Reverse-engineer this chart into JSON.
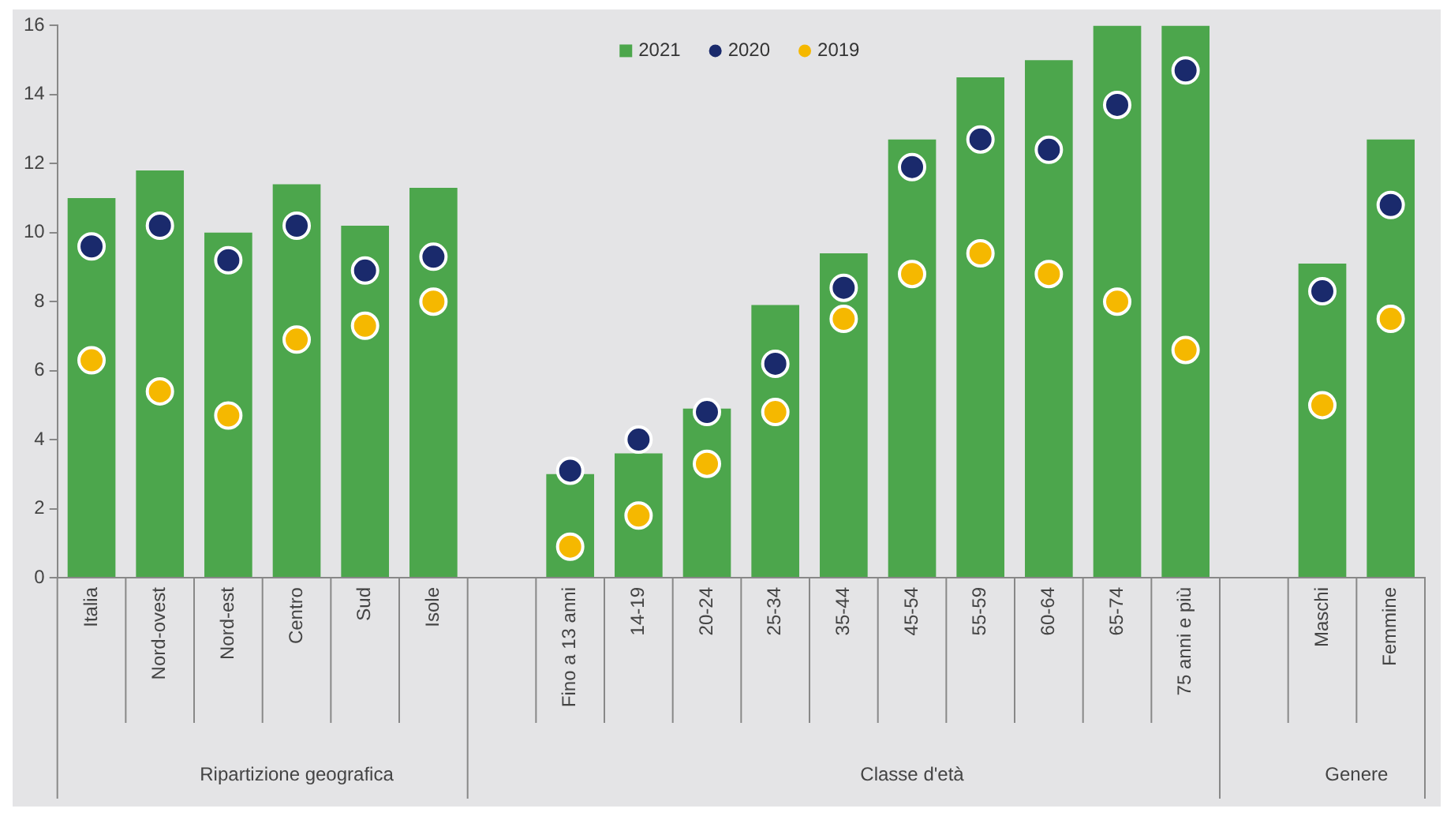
{
  "chart_data": {
    "type": "bar",
    "categories": [
      "Italia",
      "Nord-ovest",
      "Nord-est",
      "Centro",
      "Sud",
      "Isole",
      null,
      "Fino a 13 anni",
      "14-19",
      "20-24",
      "25-34",
      "35-44",
      "45-54",
      "55-59",
      "60-64",
      "65-74",
      "75 anni e più",
      null,
      "Maschi",
      "Femmine"
    ],
    "series": [
      {
        "name": "2021",
        "color": "#4ca64c",
        "values": [
          11.0,
          11.8,
          10.0,
          11.4,
          10.2,
          11.3,
          null,
          3.0,
          3.6,
          4.9,
          7.9,
          9.4,
          12.7,
          14.5,
          15.0,
          16.0,
          16.0,
          null,
          9.1,
          12.7
        ]
      },
      {
        "name": "2020",
        "type": "scatter",
        "color": "#1a2a6c",
        "values": [
          9.6,
          10.2,
          9.2,
          10.2,
          8.9,
          9.3,
          null,
          3.1,
          4.0,
          4.8,
          6.2,
          8.4,
          11.9,
          12.7,
          12.4,
          13.7,
          14.7,
          null,
          8.3,
          10.8
        ]
      },
      {
        "name": "2019",
        "type": "scatter",
        "color": "#f5b800",
        "values": [
          6.3,
          5.4,
          4.7,
          6.9,
          7.3,
          8.0,
          null,
          0.9,
          1.8,
          3.3,
          4.8,
          7.5,
          8.8,
          9.4,
          8.8,
          8.0,
          6.6,
          null,
          5.0,
          7.5
        ]
      }
    ],
    "ylim": [
      0,
      16
    ],
    "yticks": [
      0,
      2,
      4,
      6,
      8,
      10,
      12,
      14,
      16
    ],
    "annotations": [
      "Ripartizione geografica",
      "Classe d'età",
      "Genere"
    ],
    "grid": false,
    "legend": "top",
    "marker": "circle"
  }
}
